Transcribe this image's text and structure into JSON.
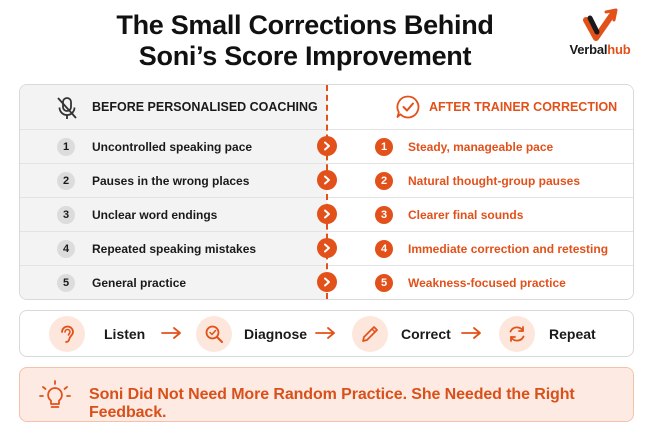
{
  "title": {
    "line1": "The Small Corrections Behind",
    "line2": "Soni’s Score Improvement"
  },
  "logo": {
    "icon": "check-arrow-icon",
    "brand_part1": "Verbal",
    "brand_part2": "hub"
  },
  "comparison": {
    "before": {
      "heading": "BEFORE PERSONALISED COACHING",
      "icon": "muted-microphone-icon",
      "items": [
        {
          "num": "1",
          "text": "Uncontrolled speaking pace"
        },
        {
          "num": "2",
          "text": "Pauses in the wrong places"
        },
        {
          "num": "3",
          "text": "Unclear word endings"
        },
        {
          "num": "4",
          "text": "Repeated speaking mistakes"
        },
        {
          "num": "5",
          "text": "General practice"
        }
      ]
    },
    "after": {
      "heading": "AFTER TRAINER CORRECTION",
      "icon": "check-speech-bubble-icon",
      "items": [
        {
          "num": "1",
          "text": "Steady, manageable pace"
        },
        {
          "num": "2",
          "text": "Natural thought-group pauses"
        },
        {
          "num": "3",
          "text": "Clearer final sounds"
        },
        {
          "num": "4",
          "text": "Immediate correction and retesting"
        },
        {
          "num": "5",
          "text": "Weakness-focused practice"
        }
      ]
    }
  },
  "process": {
    "steps": [
      {
        "label": "Listen",
        "icon": "ear-icon"
      },
      {
        "label": "Diagnose",
        "icon": "magnifier-icon"
      },
      {
        "label": "Correct",
        "icon": "pencil-icon"
      },
      {
        "label": "Repeat",
        "icon": "repeat-icon"
      }
    ]
  },
  "banner": {
    "icon": "lightbulb-icon",
    "text": "Soni Did Not Need More Random Practice. She Needed the Right Feedback."
  },
  "colors": {
    "accent": "#e2511a",
    "accent_light": "#fde7dc",
    "panel_gray": "#f3f3f3",
    "banner_bg": "#fdebe3"
  }
}
